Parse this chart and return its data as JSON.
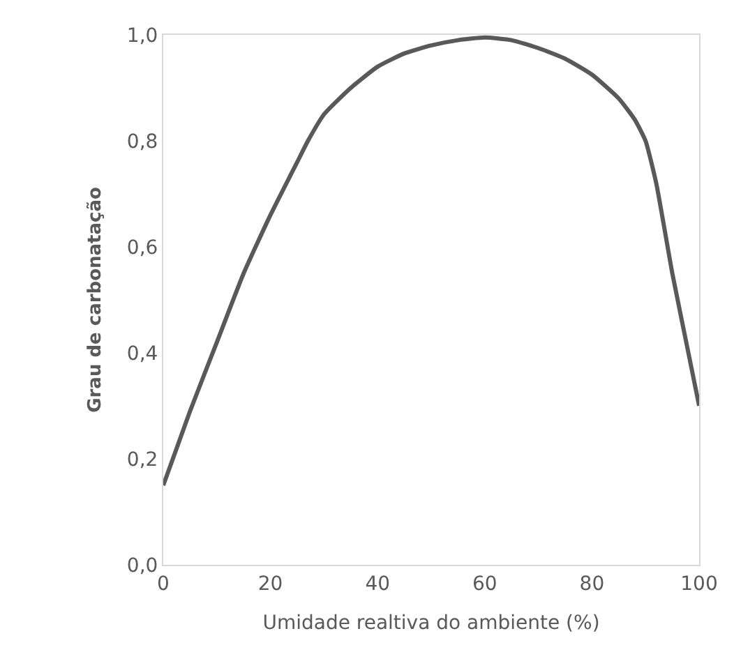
{
  "chart_data": {
    "type": "line",
    "xlabel": "Umidade realtiva do ambiente (%)",
    "ylabel": "Grau de carbonatação",
    "x": [
      0,
      5,
      10,
      15,
      20,
      25,
      27,
      30,
      35,
      40,
      45,
      50,
      55,
      60,
      65,
      70,
      75,
      80,
      85,
      88,
      90,
      92,
      95,
      98,
      100
    ],
    "series": [
      {
        "color": "#595959",
        "values": [
          0.15,
          0.29,
          0.42,
          0.55,
          0.66,
          0.76,
          0.8,
          0.85,
          0.9,
          0.94,
          0.965,
          0.98,
          0.99,
          0.995,
          0.99,
          0.975,
          0.955,
          0.925,
          0.88,
          0.84,
          0.8,
          0.72,
          0.55,
          0.4,
          0.3
        ]
      }
    ],
    "xlim": [
      0,
      100
    ],
    "xticks": [
      0,
      20,
      40,
      60,
      80,
      100
    ],
    "ylim": [
      0,
      1
    ],
    "yticks": [
      {
        "value": 0,
        "label": "0,0"
      },
      {
        "value": 0.2,
        "label": "0,2"
      },
      {
        "value": 0.4,
        "label": "0,4"
      },
      {
        "value": 0.6,
        "label": "0,6"
      },
      {
        "value": 0.8,
        "label": "0,8"
      },
      {
        "value": 1,
        "label": "1,0"
      }
    ],
    "legend": false,
    "marker": "none",
    "line_style": "solid"
  }
}
